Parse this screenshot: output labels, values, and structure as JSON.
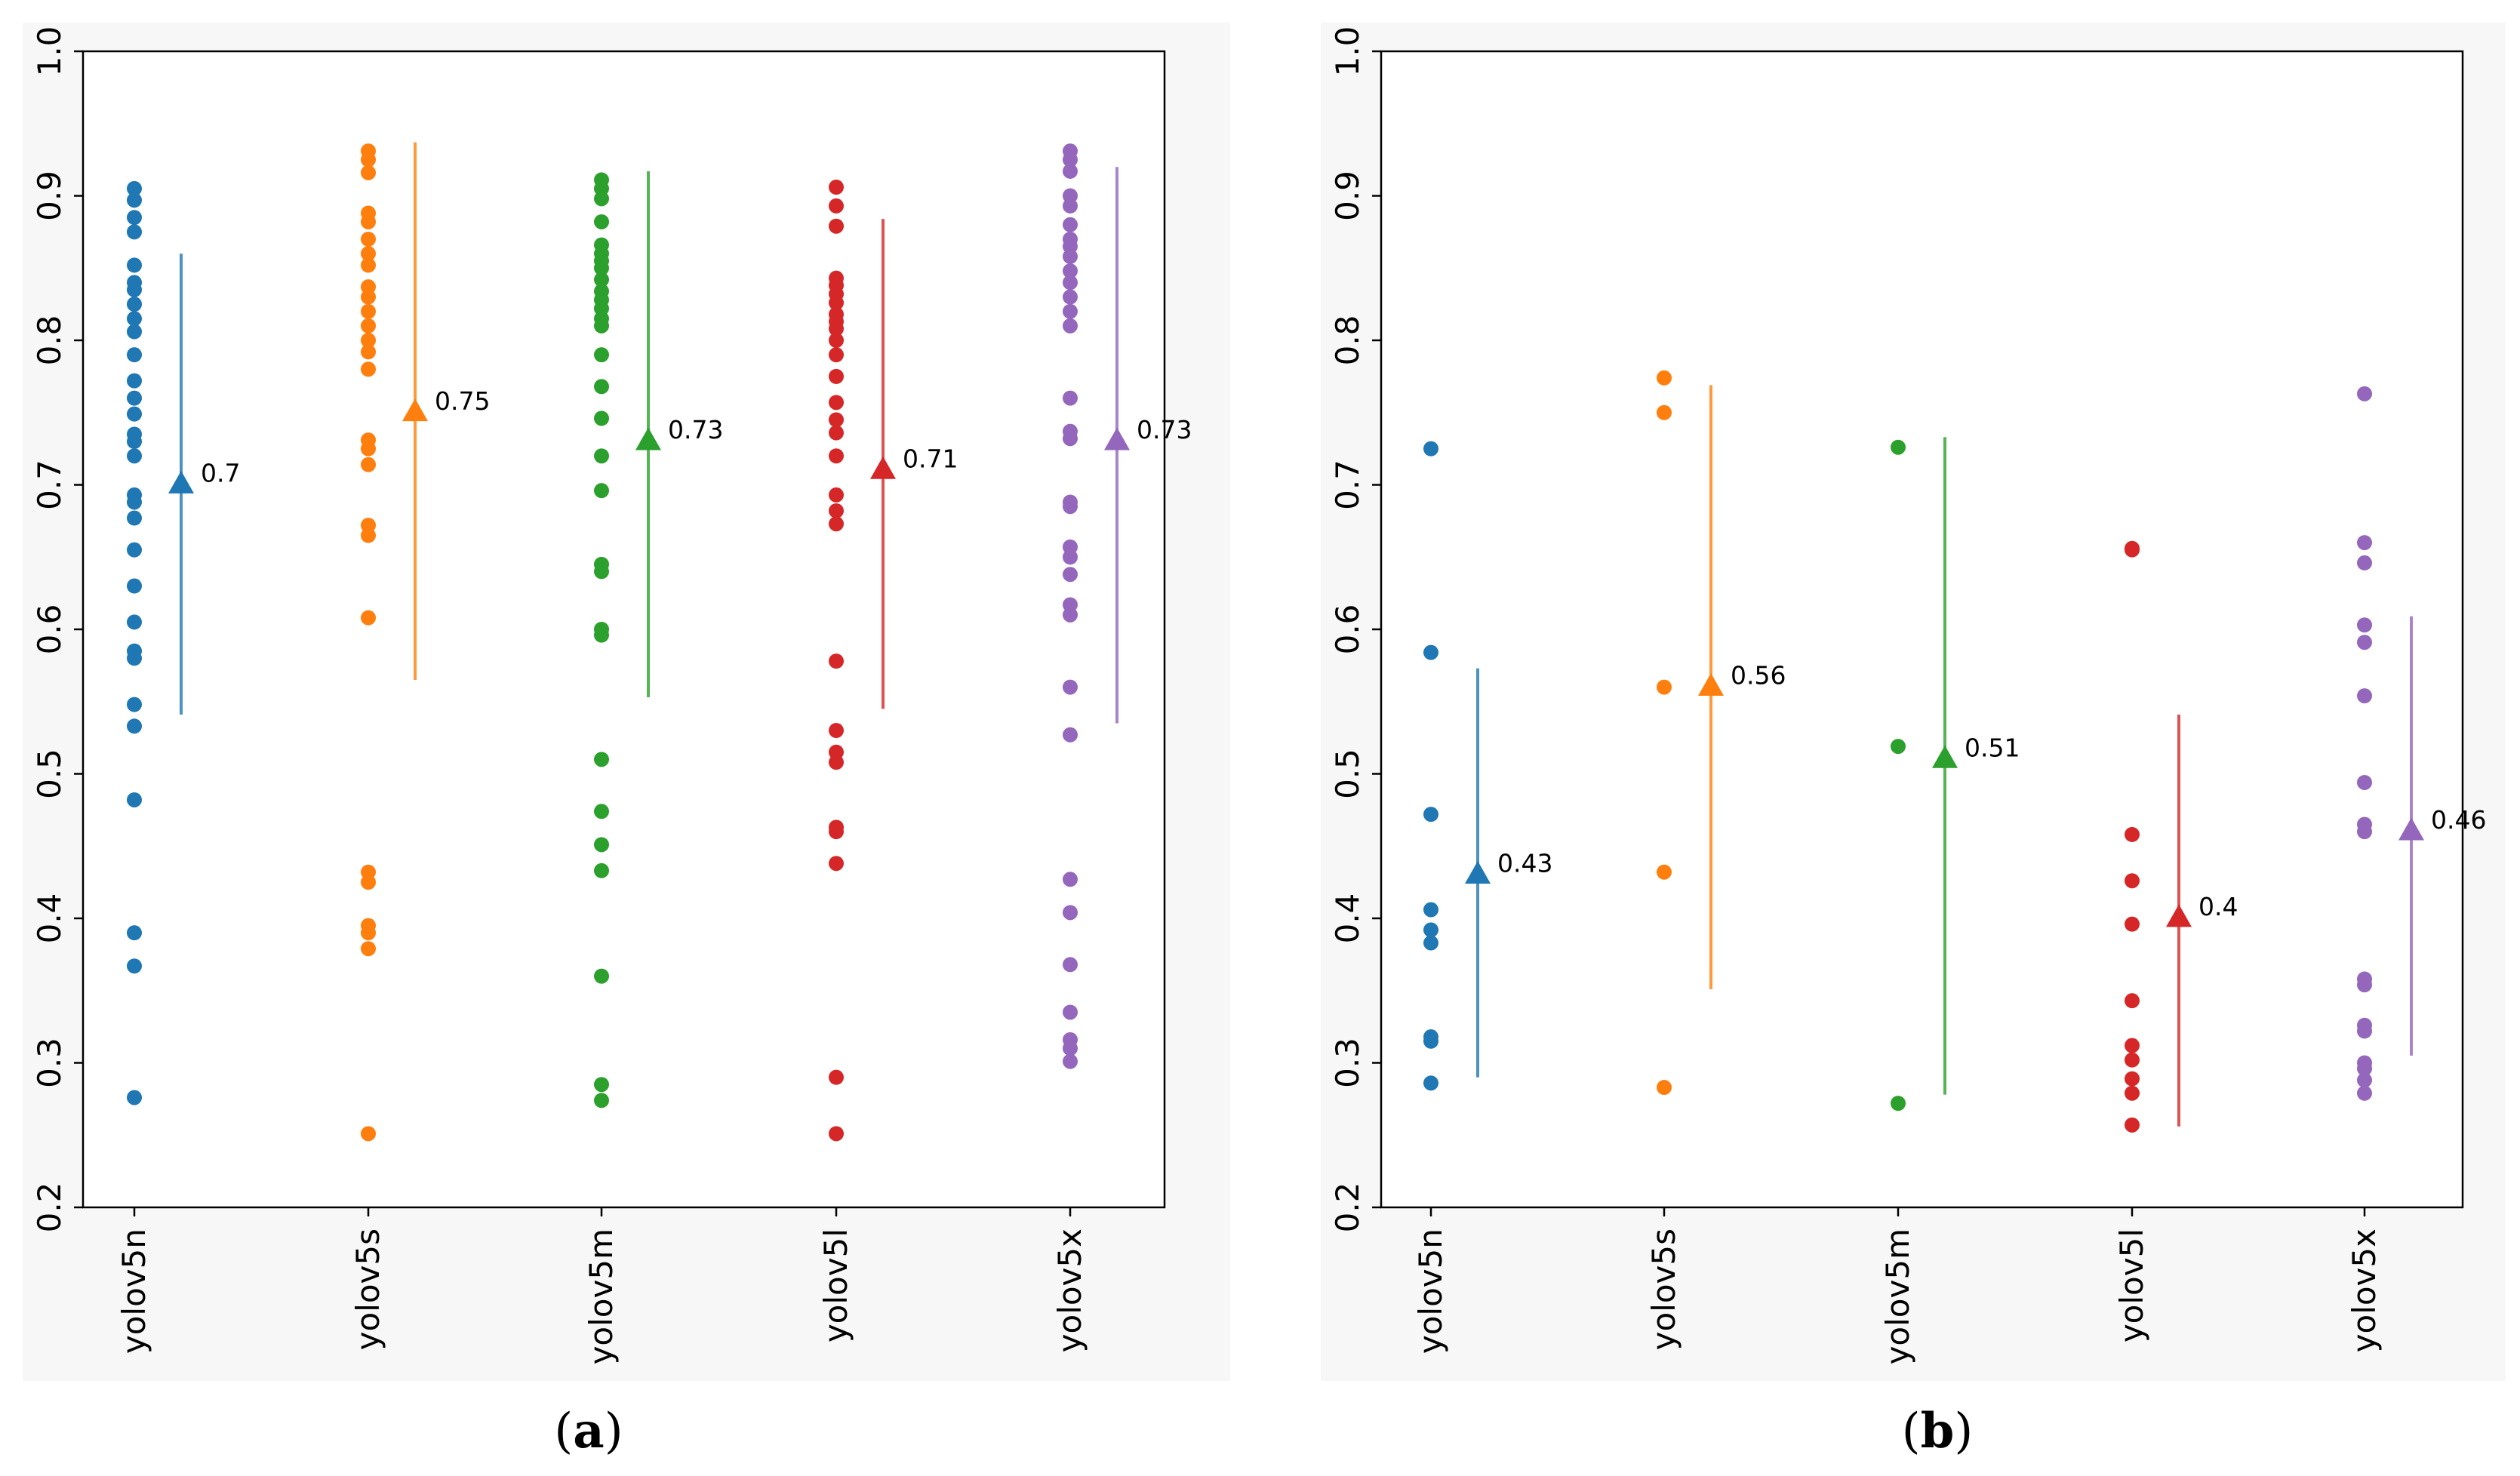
{
  "figure": {
    "captions": [
      {
        "prefix": "(",
        "letter": "a",
        "suffix": ")"
      },
      {
        "prefix": "(",
        "letter": "b",
        "suffix": ")"
      }
    ]
  },
  "chart_data": [
    {
      "type": "scatter",
      "panel": "a",
      "title": "",
      "xlabel": "",
      "ylabel": "",
      "ylim": [
        0.2,
        1.0
      ],
      "yticks": [
        "0.2",
        "0.3",
        "0.4",
        "0.5",
        "0.6",
        "0.7",
        "0.8",
        "0.9",
        "1.0"
      ],
      "categories": [
        "yolov5n",
        "yolov5s",
        "yolov5m",
        "yolov5l",
        "yolov5x"
      ],
      "series": [
        {
          "name": "yolov5n",
          "color": "#1f77b4",
          "points": [
            0.905,
            0.897,
            0.885,
            0.875,
            0.852,
            0.84,
            0.835,
            0.825,
            0.815,
            0.806,
            0.79,
            0.772,
            0.76,
            0.749,
            0.735,
            0.73,
            0.72,
            0.693,
            0.688,
            0.677,
            0.655,
            0.63,
            0.605,
            0.585,
            0.58,
            0.548,
            0.533,
            0.482,
            0.39,
            0.367,
            0.276
          ],
          "mean": 0.7,
          "mean_label": "0.7",
          "range": [
            0.541,
            0.86
          ]
        },
        {
          "name": "yolov5s",
          "color": "#ff7f0e",
          "points": [
            0.931,
            0.925,
            0.916,
            0.888,
            0.882,
            0.87,
            0.86,
            0.852,
            0.837,
            0.83,
            0.82,
            0.81,
            0.8,
            0.792,
            0.78,
            0.731,
            0.725,
            0.714,
            0.672,
            0.665,
            0.608,
            0.432,
            0.425,
            0.395,
            0.39,
            0.379,
            0.251
          ],
          "mean": 0.75,
          "mean_label": "0.75",
          "range": [
            0.565,
            0.937
          ]
        },
        {
          "name": "yolov5m",
          "color": "#2ca02c",
          "points": [
            0.911,
            0.905,
            0.898,
            0.882,
            0.866,
            0.86,
            0.855,
            0.85,
            0.842,
            0.834,
            0.828,
            0.822,
            0.815,
            0.81,
            0.79,
            0.768,
            0.746,
            0.72,
            0.696,
            0.645,
            0.64,
            0.6,
            0.596,
            0.51,
            0.474,
            0.451,
            0.433,
            0.36,
            0.285,
            0.274
          ],
          "mean": 0.73,
          "mean_label": "0.73",
          "range": [
            0.553,
            0.917
          ]
        },
        {
          "name": "yolov5l",
          "color": "#d62728",
          "points": [
            0.906,
            0.893,
            0.879,
            0.843,
            0.838,
            0.832,
            0.826,
            0.818,
            0.813,
            0.808,
            0.8,
            0.79,
            0.775,
            0.757,
            0.745,
            0.736,
            0.72,
            0.693,
            0.682,
            0.673,
            0.578,
            0.53,
            0.515,
            0.508,
            0.463,
            0.46,
            0.438,
            0.29,
            0.251
          ],
          "mean": 0.71,
          "mean_label": "0.71",
          "range": [
            0.545,
            0.884
          ]
        },
        {
          "name": "yolov5x",
          "color": "#9467bd",
          "points": [
            0.931,
            0.925,
            0.917,
            0.9,
            0.893,
            0.88,
            0.87,
            0.865,
            0.858,
            0.848,
            0.84,
            0.83,
            0.82,
            0.81,
            0.76,
            0.737,
            0.732,
            0.688,
            0.685,
            0.657,
            0.65,
            0.638,
            0.617,
            0.61,
            0.56,
            0.527,
            0.427,
            0.404,
            0.368,
            0.335,
            0.316,
            0.31,
            0.301
          ],
          "mean": 0.73,
          "mean_label": "0.73",
          "range": [
            0.535,
            0.92
          ]
        }
      ]
    },
    {
      "type": "scatter",
      "panel": "b",
      "title": "",
      "xlabel": "",
      "ylabel": "",
      "ylim": [
        0.2,
        1.0
      ],
      "yticks": [
        "0.2",
        "0.3",
        "0.4",
        "0.5",
        "0.6",
        "0.7",
        "0.8",
        "0.9",
        "1.0"
      ],
      "categories": [
        "yolov5n",
        "yolov5s",
        "yolov5m",
        "yolov5l",
        "yolov5x"
      ],
      "series": [
        {
          "name": "yolov5n",
          "color": "#1f77b4",
          "points": [
            0.725,
            0.584,
            0.472,
            0.406,
            0.392,
            0.383,
            0.318,
            0.315,
            0.286
          ],
          "mean": 0.43,
          "mean_label": "0.43",
          "range": [
            0.29,
            0.573
          ]
        },
        {
          "name": "yolov5s",
          "color": "#ff7f0e",
          "points": [
            0.774,
            0.75,
            0.56,
            0.432,
            0.283
          ],
          "mean": 0.56,
          "mean_label": "0.56",
          "range": [
            0.351,
            0.769
          ]
        },
        {
          "name": "yolov5m",
          "color": "#2ca02c",
          "points": [
            0.726,
            0.519,
            0.272
          ],
          "mean": 0.51,
          "mean_label": "0.51",
          "range": [
            0.278,
            0.733
          ]
        },
        {
          "name": "yolov5l",
          "color": "#d62728",
          "points": [
            0.656,
            0.655,
            0.458,
            0.426,
            0.396,
            0.343,
            0.312,
            0.302,
            0.289,
            0.279,
            0.257
          ],
          "mean": 0.4,
          "mean_label": "0.4",
          "range": [
            0.256,
            0.541
          ]
        },
        {
          "name": "yolov5x",
          "color": "#9467bd",
          "points": [
            0.763,
            0.66,
            0.646,
            0.603,
            0.591,
            0.554,
            0.494,
            0.465,
            0.46,
            0.358,
            0.354,
            0.326,
            0.322,
            0.3,
            0.296,
            0.288,
            0.279
          ],
          "mean": 0.46,
          "mean_label": "0.46",
          "range": [
            0.305,
            0.609
          ]
        }
      ]
    }
  ]
}
